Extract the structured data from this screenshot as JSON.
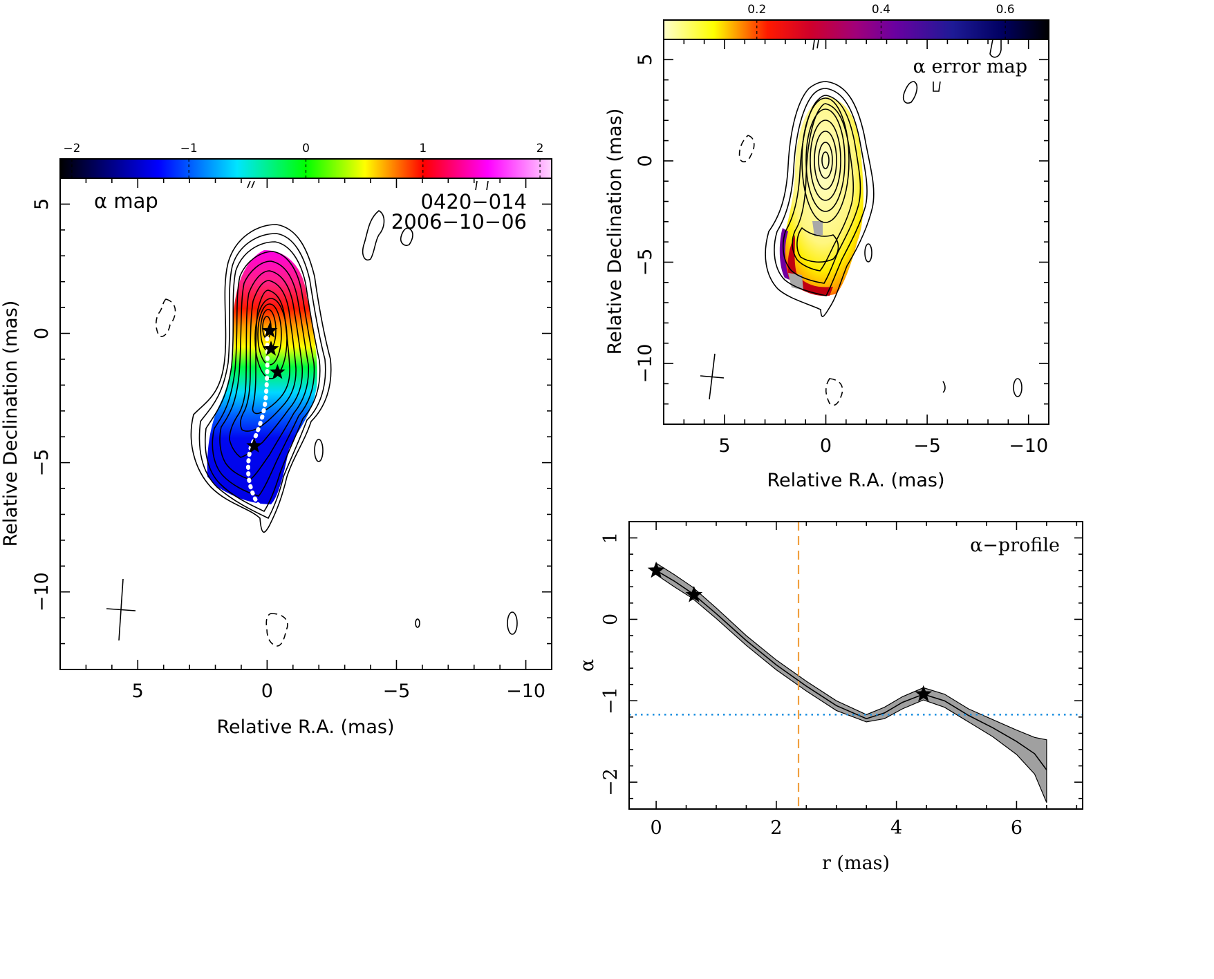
{
  "left_panel": {
    "label": "α map",
    "source": "0420−014",
    "date": "2006−10−06",
    "xlabel": "Relative R.A. (mas)",
    "ylabel": "Relative Declination (mas)",
    "colorbar_ticks": [
      "−2",
      "−1",
      "0",
      "1",
      "2"
    ],
    "colormap": [
      "#000000",
      "#0000ff",
      "#00ffff",
      "#00ff00",
      "#ffff00",
      "#ff0000",
      "#ff00ff",
      "#ffd0ff"
    ]
  },
  "right_panel": {
    "label": "α error map",
    "xlabel": "Relative R.A. (mas)",
    "ylabel": "Relative Declination (mas)",
    "colorbar_ticks": [
      "0.2",
      "0.4",
      "0.6"
    ],
    "colormap": [
      "#ffffd0",
      "#ffff00",
      "#ff0000",
      "#a00050",
      "#6000a0",
      "#000080",
      "#000000"
    ]
  },
  "chart_data": [
    {
      "type": "heatmap",
      "title": "α map",
      "xlabel": "Relative R.A. (mas)",
      "ylabel": "Relative Declination (mas)",
      "xlim": [
        8,
        -11
      ],
      "ylim": [
        -13,
        6
      ],
      "x_ticks": [
        "5",
        "0",
        "−5",
        "−10"
      ],
      "y_ticks": [
        "5",
        "0",
        "−5",
        "−10"
      ],
      "colorbar_range": [
        -2.1,
        2.1
      ],
      "ridge_stars": [
        [
          -0.1,
          0.1
        ],
        [
          -0.15,
          -0.6
        ],
        [
          -0.4,
          -1.5
        ],
        [
          0.5,
          -4.35
        ]
      ]
    },
    {
      "type": "heatmap",
      "title": "α error map",
      "xlabel": "Relative R.A. (mas)",
      "ylabel": "Relative Declination (mas)",
      "xlim": [
        8,
        -11
      ],
      "ylim": [
        -13,
        6
      ],
      "x_ticks": [
        "5",
        "0",
        "−5",
        "−10"
      ],
      "y_ticks": [
        "5",
        "0",
        "−5",
        "−10"
      ],
      "colorbar_range": [
        0.05,
        0.67
      ]
    },
    {
      "type": "line",
      "title": "α−profile",
      "xlabel": "r (mas)",
      "ylabel": "α",
      "xlim": [
        -0.45,
        7.1
      ],
      "ylim": [
        -2.33,
        1.2
      ],
      "x_ticks": [
        "0",
        "2",
        "4",
        "6"
      ],
      "y_ticks": [
        "1",
        "0",
        "−1",
        "−2"
      ],
      "vline_x": 2.37,
      "hline_y": -1.17,
      "series": [
        {
          "x": [
            0,
            0.3,
            0.6,
            1.0,
            1.5,
            2.0,
            2.5,
            3.0,
            3.5,
            3.8,
            4.1,
            4.45,
            4.8,
            5.2,
            5.6,
            6.0,
            6.3,
            6.5
          ],
          "values": [
            0.6,
            0.47,
            0.32,
            0.07,
            -0.26,
            -0.56,
            -0.82,
            -1.06,
            -1.22,
            -1.15,
            -1.02,
            -0.92,
            -1.0,
            -1.18,
            -1.33,
            -1.5,
            -1.65,
            -1.85
          ],
          "lower": [
            0.55,
            0.4,
            0.26,
            0.01,
            -0.32,
            -0.62,
            -0.88,
            -1.12,
            -1.26,
            -1.22,
            -1.1,
            -0.99,
            -1.08,
            -1.26,
            -1.44,
            -1.66,
            -1.9,
            -2.25
          ],
          "upper": [
            0.69,
            0.55,
            0.4,
            0.14,
            -0.2,
            -0.5,
            -0.76,
            -1.0,
            -1.17,
            -1.08,
            -0.95,
            -0.84,
            -0.92,
            -1.1,
            -1.23,
            -1.36,
            -1.45,
            -1.48
          ]
        }
      ],
      "stars": [
        [
          0.0,
          0.6
        ],
        [
          0.63,
          0.3
        ],
        [
          4.45,
          -0.92
        ]
      ]
    }
  ]
}
